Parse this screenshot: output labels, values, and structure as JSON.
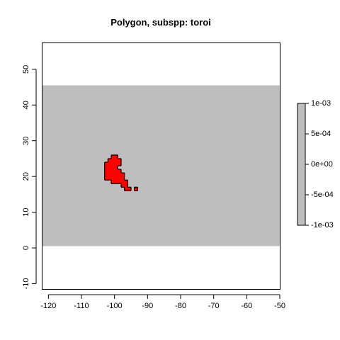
{
  "chart_data": {
    "type": "heatmap",
    "title": "Polygon, subspp: toroi",
    "xlabel": "",
    "ylabel": "",
    "xlim": [
      -122,
      -50
    ],
    "ylim": [
      -11.5,
      57.5
    ],
    "x_ticks": [
      -120,
      -110,
      -100,
      -90,
      -80,
      -70,
      -60,
      -50
    ],
    "y_ticks": [
      -10,
      0,
      10,
      20,
      30,
      40,
      50
    ],
    "raster_extent": {
      "x": [
        -122,
        -50
      ],
      "y": [
        0.5,
        45.5
      ],
      "value": 0,
      "color": "#bebebe"
    },
    "polygon": {
      "fill": "#ff0000",
      "cells": [
        [
          -101,
          25
        ],
        [
          -100,
          25
        ],
        [
          -102,
          24
        ],
        [
          -101,
          24
        ],
        [
          -100,
          24
        ],
        [
          -99,
          24
        ],
        [
          -103,
          23
        ],
        [
          -102,
          23
        ],
        [
          -101,
          23
        ],
        [
          -100,
          23
        ],
        [
          -99,
          23
        ],
        [
          -103,
          22
        ],
        [
          -102,
          22
        ],
        [
          -101,
          22
        ],
        [
          -100,
          22
        ],
        [
          -103,
          21
        ],
        [
          -102,
          21
        ],
        [
          -101,
          21
        ],
        [
          -100,
          21
        ],
        [
          -99,
          21
        ],
        [
          -103,
          20
        ],
        [
          -102,
          20
        ],
        [
          -101,
          20
        ],
        [
          -100,
          20
        ],
        [
          -99,
          20
        ],
        [
          -98,
          20
        ],
        [
          -103,
          19
        ],
        [
          -102,
          19
        ],
        [
          -101,
          19
        ],
        [
          -100,
          19
        ],
        [
          -99,
          19
        ],
        [
          -98,
          19
        ],
        [
          -101,
          18
        ],
        [
          -100,
          18
        ],
        [
          -99,
          18
        ],
        [
          -98,
          18
        ],
        [
          -97,
          18
        ],
        [
          -98,
          17
        ],
        [
          -97,
          17
        ],
        [
          -97,
          16
        ],
        [
          -96,
          16
        ],
        [
          -94,
          16
        ]
      ]
    },
    "legend": {
      "position": "right",
      "fill": "#bebebe",
      "range": [
        -0.001,
        0.001
      ],
      "ticks": [
        -0.001,
        -0.0005,
        0,
        0.0005,
        0.001
      ],
      "tick_labels": [
        "-1e-03",
        "-5e-04",
        "0e+00",
        "5e-04",
        "1e-03"
      ]
    }
  }
}
